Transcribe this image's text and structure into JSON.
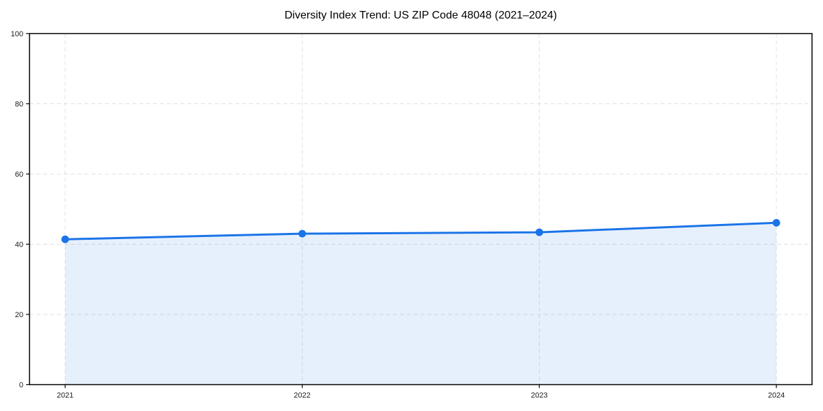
{
  "chart_data": {
    "type": "line",
    "title": "Diversity Index Trend: US ZIP Code 48048 (2021–2024)",
    "categories": [
      "2021",
      "2022",
      "2023",
      "2024"
    ],
    "series": [
      {
        "name": "Diversity Index",
        "values": [
          41.4,
          43.0,
          43.4,
          46.1
        ]
      }
    ],
    "xlabel": "",
    "ylabel": "",
    "ylim": [
      0,
      100
    ],
    "yticks": [
      0,
      20,
      40,
      60,
      80,
      100
    ],
    "grid": true,
    "grid_style": "dashed",
    "legend_position": "none",
    "area_fill": true,
    "marker": "circle",
    "colors": {
      "line": "#1a73e8",
      "marker": "#1a73e8",
      "area_fill": "#1a73e8",
      "area_fill_opacity": 0.11,
      "grid": "#e0e0e0",
      "spine": "#000000",
      "tick_label": "#1a1a1a",
      "title": "#000000",
      "background": "#ffffff"
    }
  }
}
